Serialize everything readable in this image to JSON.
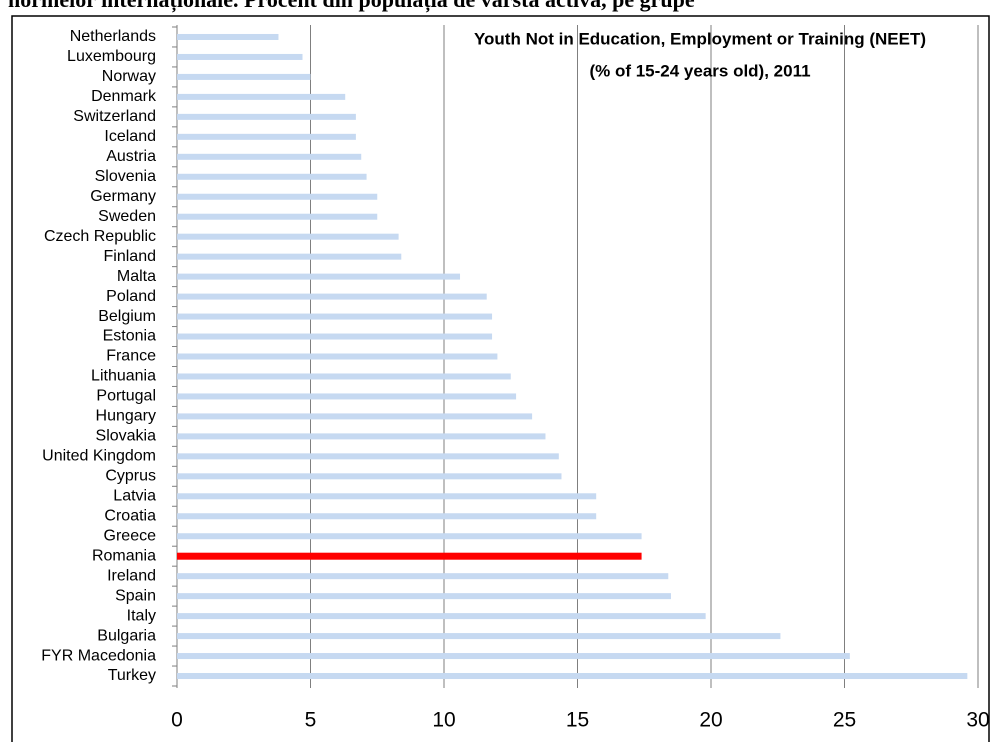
{
  "chart_data": {
    "type": "hbar",
    "caption": "normelor internaționale. Procent din populația de vârsta activă, pe grupe",
    "title": "Youth Not in Education, Employment or Training (NEET)",
    "subtitle": "(% of 15-24 years old), 2011",
    "categories": [
      "Netherlands",
      "Luxembourg",
      "Norway",
      "Denmark",
      "Switzerland",
      "Iceland",
      "Austria",
      "Slovenia",
      "Germany",
      "Sweden",
      "Czech Republic",
      "Finland",
      "Malta",
      "Poland",
      "Belgium",
      "Estonia",
      "France",
      "Lithuania",
      "Portugal",
      "Hungary",
      "Slovakia",
      "United Kingdom",
      "Cyprus",
      "Latvia",
      "Croatia",
      "Greece",
      "Romania",
      "Ireland",
      "Spain",
      "Italy",
      "Bulgaria",
      "FYR Macedonia",
      "Turkey"
    ],
    "values": [
      3.8,
      4.7,
      5.0,
      6.3,
      6.7,
      6.7,
      6.9,
      7.1,
      7.5,
      7.5,
      8.3,
      8.4,
      10.6,
      11.6,
      11.8,
      11.8,
      12.0,
      12.5,
      12.7,
      13.3,
      13.8,
      14.3,
      14.4,
      15.7,
      15.7,
      17.4,
      17.4,
      18.4,
      18.5,
      19.8,
      22.6,
      25.2,
      29.6
    ],
    "color": "#c6d9f1",
    "highlight": {
      "category": "Romania",
      "color": "#ff0000"
    },
    "xlim": [
      0,
      30
    ],
    "xticks": [
      0,
      5,
      10,
      15,
      20,
      25,
      30
    ],
    "grid": true
  }
}
